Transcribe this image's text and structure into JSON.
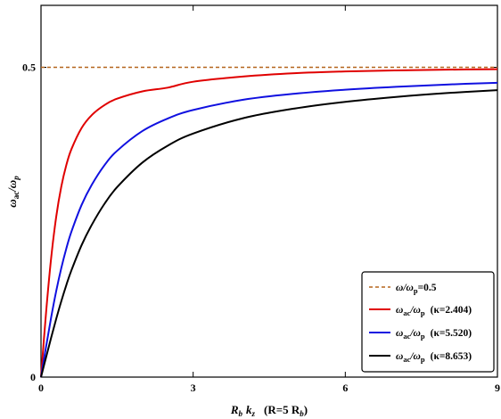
{
  "chart_data": {
    "type": "line",
    "xlabel": {
      "main": "R",
      "sub": "b",
      "main2": "k",
      "sub2": "z",
      "paren_open": "(R=5 R",
      "paren_sub": "b",
      "paren_close": ")"
    },
    "ylabel": {
      "main": "ω",
      "sub": "ac",
      "slash": "/ω",
      "sub2": "p"
    },
    "xlim": [
      0,
      9
    ],
    "ylim": [
      0,
      0.6
    ],
    "x_ticks": [
      {
        "value": 0,
        "label": "0"
      },
      {
        "value": 3,
        "label": "3"
      },
      {
        "value": 6,
        "label": "6"
      },
      {
        "value": 9,
        "label": "9"
      }
    ],
    "y_ticks": [
      {
        "value": 0,
        "label": "0"
      },
      {
        "value": 0.5,
        "label": "0.5"
      }
    ],
    "grid": false,
    "legend_position": "bottom-right",
    "series": [
      {
        "name": "ω/ω_p=0.5",
        "label_parts": [
          "ω/ω",
          "p",
          "=0.5"
        ],
        "kind": "reference",
        "color": "#b5651d",
        "dashed": true,
        "x": [
          0,
          9
        ],
        "y": [
          0.5,
          0.5
        ]
      },
      {
        "name": "ω_ac/ω_p (κ=2.404)",
        "label_parts": [
          "ω",
          "ac",
          "/ω",
          "p",
          "(κ=2.404)"
        ],
        "kind": "curve",
        "kappa": 2.404,
        "color": "#e00000",
        "dashed": false,
        "x": [
          0,
          0.1,
          0.2,
          0.3,
          0.4,
          0.5,
          0.6,
          0.8,
          1.0,
          1.25,
          1.5,
          2.0,
          2.5,
          3.0,
          4.0,
          5.0,
          6.0,
          7.0,
          8.0,
          9.0
        ],
        "y": [
          0,
          0.1044,
          0.1922,
          0.2589,
          0.3074,
          0.3424,
          0.3679,
          0.402,
          0.4228,
          0.4389,
          0.4493,
          0.4612,
          0.4672,
          0.4767,
          0.4852,
          0.4904,
          0.4933,
          0.495,
          0.4962,
          0.497
        ]
      },
      {
        "name": "ω_ac/ω_p (κ=5.520)",
        "label_parts": [
          "ω",
          "ac",
          "/ω",
          "p",
          "(κ=5.520)"
        ],
        "kind": "curve",
        "kappa": 5.52,
        "color": "#1010e0",
        "dashed": false,
        "x": [
          0,
          0.1,
          0.2,
          0.3,
          0.4,
          0.5,
          0.6,
          0.8,
          1.0,
          1.25,
          1.5,
          2.0,
          2.5,
          3.0,
          4.0,
          5.0,
          6.0,
          7.0,
          8.0,
          9.0
        ],
        "y": [
          0,
          0.0492,
          0.0963,
          0.1389,
          0.176,
          0.2078,
          0.2348,
          0.2778,
          0.3102,
          0.3418,
          0.3652,
          0.3972,
          0.4174,
          0.4311,
          0.4478,
          0.4574,
          0.4639,
          0.4686,
          0.4722,
          0.475
        ]
      },
      {
        "name": "ω_ac/ω_p (κ=8.653)",
        "label_parts": [
          "ω",
          "ac",
          "/ω",
          "p",
          "(κ=8.653)"
        ],
        "kind": "curve",
        "kappa": 8.653,
        "color": "#000000",
        "dashed": false,
        "x": [
          0,
          0.1,
          0.2,
          0.3,
          0.4,
          0.5,
          0.6,
          0.8,
          1.0,
          1.25,
          1.5,
          2.0,
          2.5,
          3.0,
          4.0,
          5.0,
          6.0,
          7.0,
          8.0,
          9.0
        ],
        "y": [
          0,
          0.0321,
          0.0636,
          0.094,
          0.1225,
          0.1487,
          0.1724,
          0.2129,
          0.2456,
          0.2795,
          0.3065,
          0.3463,
          0.3736,
          0.3931,
          0.4182,
          0.4335,
          0.4443,
          0.4522,
          0.4584,
          0.4631
        ]
      }
    ]
  }
}
